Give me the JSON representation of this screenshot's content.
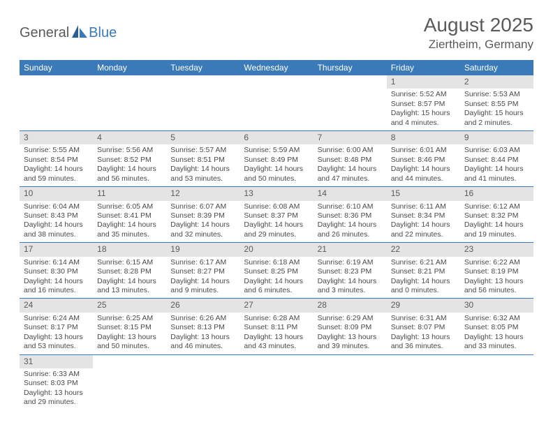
{
  "logo": {
    "text1": "General",
    "text2": "Blue"
  },
  "title": "August 2025",
  "location": "Ziertheim, Germany",
  "header_bg": "#3a7ab8",
  "header_fg": "#ffffff",
  "daynum_bg": "#e4e4e4",
  "text_color": "#4a4a4a",
  "weekdays": [
    "Sunday",
    "Monday",
    "Tuesday",
    "Wednesday",
    "Thursday",
    "Friday",
    "Saturday"
  ],
  "weeks": [
    [
      null,
      null,
      null,
      null,
      null,
      {
        "n": "1",
        "sr": "Sunrise: 5:52 AM",
        "ss": "Sunset: 8:57 PM",
        "dl": "Daylight: 15 hours and 4 minutes."
      },
      {
        "n": "2",
        "sr": "Sunrise: 5:53 AM",
        "ss": "Sunset: 8:55 PM",
        "dl": "Daylight: 15 hours and 2 minutes."
      }
    ],
    [
      {
        "n": "3",
        "sr": "Sunrise: 5:55 AM",
        "ss": "Sunset: 8:54 PM",
        "dl": "Daylight: 14 hours and 59 minutes."
      },
      {
        "n": "4",
        "sr": "Sunrise: 5:56 AM",
        "ss": "Sunset: 8:52 PM",
        "dl": "Daylight: 14 hours and 56 minutes."
      },
      {
        "n": "5",
        "sr": "Sunrise: 5:57 AM",
        "ss": "Sunset: 8:51 PM",
        "dl": "Daylight: 14 hours and 53 minutes."
      },
      {
        "n": "6",
        "sr": "Sunrise: 5:59 AM",
        "ss": "Sunset: 8:49 PM",
        "dl": "Daylight: 14 hours and 50 minutes."
      },
      {
        "n": "7",
        "sr": "Sunrise: 6:00 AM",
        "ss": "Sunset: 8:48 PM",
        "dl": "Daylight: 14 hours and 47 minutes."
      },
      {
        "n": "8",
        "sr": "Sunrise: 6:01 AM",
        "ss": "Sunset: 8:46 PM",
        "dl": "Daylight: 14 hours and 44 minutes."
      },
      {
        "n": "9",
        "sr": "Sunrise: 6:03 AM",
        "ss": "Sunset: 8:44 PM",
        "dl": "Daylight: 14 hours and 41 minutes."
      }
    ],
    [
      {
        "n": "10",
        "sr": "Sunrise: 6:04 AM",
        "ss": "Sunset: 8:43 PM",
        "dl": "Daylight: 14 hours and 38 minutes."
      },
      {
        "n": "11",
        "sr": "Sunrise: 6:05 AM",
        "ss": "Sunset: 8:41 PM",
        "dl": "Daylight: 14 hours and 35 minutes."
      },
      {
        "n": "12",
        "sr": "Sunrise: 6:07 AM",
        "ss": "Sunset: 8:39 PM",
        "dl": "Daylight: 14 hours and 32 minutes."
      },
      {
        "n": "13",
        "sr": "Sunrise: 6:08 AM",
        "ss": "Sunset: 8:37 PM",
        "dl": "Daylight: 14 hours and 29 minutes."
      },
      {
        "n": "14",
        "sr": "Sunrise: 6:10 AM",
        "ss": "Sunset: 8:36 PM",
        "dl": "Daylight: 14 hours and 26 minutes."
      },
      {
        "n": "15",
        "sr": "Sunrise: 6:11 AM",
        "ss": "Sunset: 8:34 PM",
        "dl": "Daylight: 14 hours and 22 minutes."
      },
      {
        "n": "16",
        "sr": "Sunrise: 6:12 AM",
        "ss": "Sunset: 8:32 PM",
        "dl": "Daylight: 14 hours and 19 minutes."
      }
    ],
    [
      {
        "n": "17",
        "sr": "Sunrise: 6:14 AM",
        "ss": "Sunset: 8:30 PM",
        "dl": "Daylight: 14 hours and 16 minutes."
      },
      {
        "n": "18",
        "sr": "Sunrise: 6:15 AM",
        "ss": "Sunset: 8:28 PM",
        "dl": "Daylight: 14 hours and 13 minutes."
      },
      {
        "n": "19",
        "sr": "Sunrise: 6:17 AM",
        "ss": "Sunset: 8:27 PM",
        "dl": "Daylight: 14 hours and 9 minutes."
      },
      {
        "n": "20",
        "sr": "Sunrise: 6:18 AM",
        "ss": "Sunset: 8:25 PM",
        "dl": "Daylight: 14 hours and 6 minutes."
      },
      {
        "n": "21",
        "sr": "Sunrise: 6:19 AM",
        "ss": "Sunset: 8:23 PM",
        "dl": "Daylight: 14 hours and 3 minutes."
      },
      {
        "n": "22",
        "sr": "Sunrise: 6:21 AM",
        "ss": "Sunset: 8:21 PM",
        "dl": "Daylight: 14 hours and 0 minutes."
      },
      {
        "n": "23",
        "sr": "Sunrise: 6:22 AM",
        "ss": "Sunset: 8:19 PM",
        "dl": "Daylight: 13 hours and 56 minutes."
      }
    ],
    [
      {
        "n": "24",
        "sr": "Sunrise: 6:24 AM",
        "ss": "Sunset: 8:17 PM",
        "dl": "Daylight: 13 hours and 53 minutes."
      },
      {
        "n": "25",
        "sr": "Sunrise: 6:25 AM",
        "ss": "Sunset: 8:15 PM",
        "dl": "Daylight: 13 hours and 50 minutes."
      },
      {
        "n": "26",
        "sr": "Sunrise: 6:26 AM",
        "ss": "Sunset: 8:13 PM",
        "dl": "Daylight: 13 hours and 46 minutes."
      },
      {
        "n": "27",
        "sr": "Sunrise: 6:28 AM",
        "ss": "Sunset: 8:11 PM",
        "dl": "Daylight: 13 hours and 43 minutes."
      },
      {
        "n": "28",
        "sr": "Sunrise: 6:29 AM",
        "ss": "Sunset: 8:09 PM",
        "dl": "Daylight: 13 hours and 39 minutes."
      },
      {
        "n": "29",
        "sr": "Sunrise: 6:31 AM",
        "ss": "Sunset: 8:07 PM",
        "dl": "Daylight: 13 hours and 36 minutes."
      },
      {
        "n": "30",
        "sr": "Sunrise: 6:32 AM",
        "ss": "Sunset: 8:05 PM",
        "dl": "Daylight: 13 hours and 33 minutes."
      }
    ],
    [
      {
        "n": "31",
        "sr": "Sunrise: 6:33 AM",
        "ss": "Sunset: 8:03 PM",
        "dl": "Daylight: 13 hours and 29 minutes."
      },
      null,
      null,
      null,
      null,
      null,
      null
    ]
  ]
}
